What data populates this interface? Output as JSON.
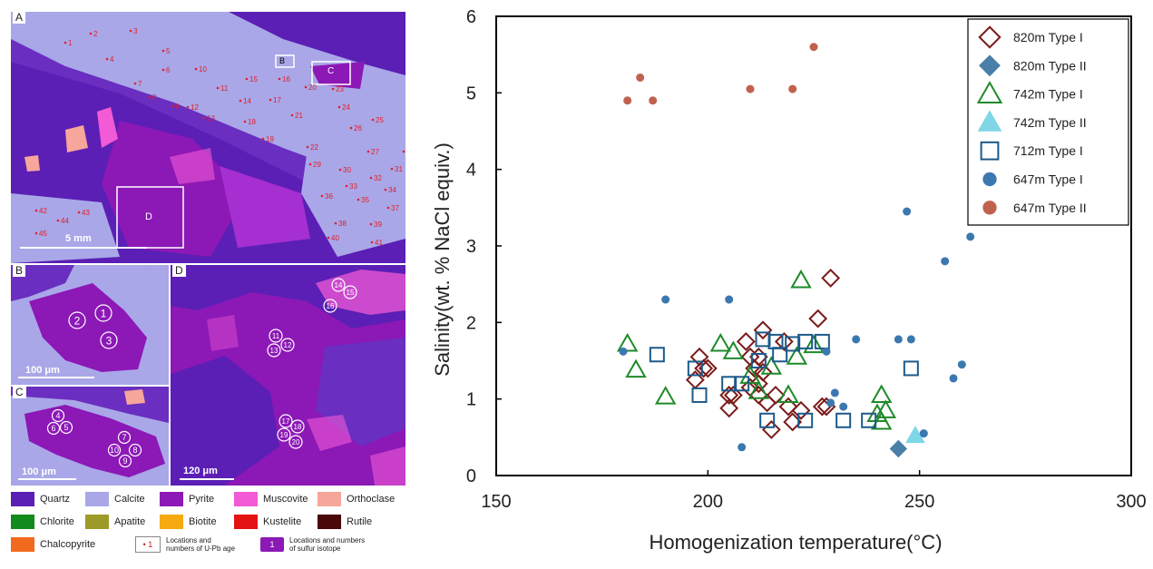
{
  "left_panels": {
    "A": {
      "label": "A",
      "scale": "5 mm",
      "box_labels": [
        "B",
        "C",
        "D"
      ],
      "points": [
        "1",
        "2",
        "3",
        "4",
        "5",
        "6",
        "7",
        "8",
        "9",
        "10",
        "11",
        "12",
        "13",
        "14",
        "15",
        "16",
        "17",
        "18",
        "19",
        "20",
        "21",
        "22",
        "23",
        "24",
        "25",
        "26",
        "27",
        "28",
        "29",
        "30",
        "31",
        "32",
        "33",
        "34",
        "35",
        "36",
        "37",
        "38",
        "39",
        "40",
        "41",
        "42",
        "43",
        "44",
        "45"
      ]
    },
    "B": {
      "label": "B",
      "scale": "100 μm",
      "circles": [
        "1",
        "2",
        "3"
      ]
    },
    "C": {
      "label": "C",
      "scale": "100 μm",
      "circles": [
        "4",
        "5",
        "6",
        "7",
        "8",
        "9",
        "10"
      ]
    },
    "D": {
      "label": "D",
      "scale": "120 μm",
      "circles": [
        "11",
        "12",
        "13",
        "14",
        "15",
        "16",
        "17",
        "18",
        "19",
        "20"
      ]
    }
  },
  "mineral_legend": [
    {
      "name": "Quartz",
      "color": "#5b1fb5"
    },
    {
      "name": "Calcite",
      "color": "#a9a7e8"
    },
    {
      "name": "Pyrite",
      "color": "#8c18b6"
    },
    {
      "name": "Muscovite",
      "color": "#f25ad6"
    },
    {
      "name": "Orthoclase",
      "color": "#f6a69a"
    },
    {
      "name": "Chlorite",
      "color": "#138a1c"
    },
    {
      "name": "Apatite",
      "color": "#9e9a28"
    },
    {
      "name": "Biotite",
      "color": "#f5aa12"
    },
    {
      "name": "Kustelite",
      "color": "#e41212"
    },
    {
      "name": "Rutile",
      "color": "#4a0808"
    },
    {
      "name": "Chalcopyrite",
      "color": "#f26a1e"
    }
  ],
  "marker_legend": [
    {
      "symbol": "• 1",
      "text_lines": [
        "Locations and",
        "numbers of U-Pb age"
      ]
    },
    {
      "symbol": "1",
      "text_lines": [
        "Locations and numbers",
        "of sulfur isotope"
      ]
    }
  ],
  "chart_data": {
    "type": "scatter",
    "xlabel": "Homogenization temperature(°C)",
    "ylabel": "Salinity(wt. % NaCl equiv.)",
    "xlim": [
      150,
      300
    ],
    "ylim": [
      0,
      6
    ],
    "xticks": [
      "150",
      "200",
      "250",
      "300"
    ],
    "yticks": [
      "0",
      "1",
      "2",
      "3",
      "4",
      "5",
      "6"
    ],
    "grid": false,
    "legend_position": "top-right",
    "series": [
      {
        "name": "820m Type I",
        "marker": "diamond-open",
        "color": "#7b1a1a",
        "points": [
          [
            198,
            1.55
          ],
          [
            199,
            1.4
          ],
          [
            197,
            1.25
          ],
          [
            200,
            1.4
          ],
          [
            205,
            1.05
          ],
          [
            206,
            1.05
          ],
          [
            205,
            0.88
          ],
          [
            209,
            1.75
          ],
          [
            210,
            1.55
          ],
          [
            211,
            1.4
          ],
          [
            212,
            1.55
          ],
          [
            213,
            1.35
          ],
          [
            212,
            1.2
          ],
          [
            210,
            1.15
          ],
          [
            212,
            1.05
          ],
          [
            213,
            1.9
          ],
          [
            214,
            0.95
          ],
          [
            216,
            1.05
          ],
          [
            215,
            0.6
          ],
          [
            218,
            1.75
          ],
          [
            219,
            0.9
          ],
          [
            220,
            0.7
          ],
          [
            222,
            0.85
          ],
          [
            226,
            2.05
          ],
          [
            227,
            0.9
          ],
          [
            228,
            0.9
          ],
          [
            229,
            2.58
          ]
        ]
      },
      {
        "name": "820m Type II",
        "marker": "diamond-filled",
        "color": "#4a7fa7",
        "points": [
          [
            245,
            0.35
          ]
        ]
      },
      {
        "name": "742m Type I",
        "marker": "triangle-open",
        "color": "#1f8a2a",
        "points": [
          [
            181,
            1.72
          ],
          [
            183,
            1.38
          ],
          [
            190,
            1.03
          ],
          [
            203,
            1.72
          ],
          [
            206,
            1.62
          ],
          [
            210,
            1.3
          ],
          [
            212,
            1.1
          ],
          [
            215,
            1.42
          ],
          [
            219,
            1.05
          ],
          [
            221,
            1.55
          ],
          [
            222,
            2.55
          ],
          [
            225,
            1.7
          ],
          [
            240,
            0.8
          ],
          [
            241,
            1.05
          ],
          [
            241,
            0.7
          ],
          [
            242,
            0.85
          ]
        ]
      },
      {
        "name": "742m Type II",
        "marker": "triangle-filled",
        "color": "#7fd6e6",
        "points": [
          [
            249,
            0.52
          ]
        ]
      },
      {
        "name": "712m Type I",
        "marker": "square-open",
        "color": "#1c5a8a",
        "points": [
          [
            188,
            1.58
          ],
          [
            197,
            1.4
          ],
          [
            198,
            1.05
          ],
          [
            205,
            1.2
          ],
          [
            208,
            1.2
          ],
          [
            212,
            1.5
          ],
          [
            213,
            1.78
          ],
          [
            214,
            0.72
          ],
          [
            216,
            1.75
          ],
          [
            217,
            1.58
          ],
          [
            220,
            1.72
          ],
          [
            223,
            0.72
          ],
          [
            223,
            1.75
          ],
          [
            227,
            1.75
          ],
          [
            232,
            0.72
          ],
          [
            238,
            0.72
          ],
          [
            248,
            1.4
          ]
        ]
      },
      {
        "name": "647m Type I",
        "marker": "circle-filled",
        "color": "#3b78b0",
        "points": [
          [
            180,
            1.62
          ],
          [
            190,
            2.3
          ],
          [
            205,
            2.3
          ],
          [
            208,
            0.37
          ],
          [
            228,
            1.62
          ],
          [
            229,
            0.95
          ],
          [
            230,
            1.08
          ],
          [
            232,
            0.9
          ],
          [
            235,
            1.78
          ],
          [
            245,
            1.78
          ],
          [
            247,
            3.45
          ],
          [
            248,
            1.78
          ],
          [
            251,
            0.55
          ],
          [
            256,
            2.8
          ],
          [
            258,
            1.27
          ],
          [
            260,
            1.45
          ],
          [
            262,
            3.12
          ]
        ]
      },
      {
        "name": "647m Type II",
        "marker": "circle-filled",
        "color": "#c0614e",
        "points": [
          [
            181,
            4.9
          ],
          [
            184,
            5.2
          ],
          [
            187,
            4.9
          ],
          [
            210,
            5.05
          ],
          [
            220,
            5.05
          ],
          [
            225,
            5.6
          ]
        ]
      }
    ]
  }
}
